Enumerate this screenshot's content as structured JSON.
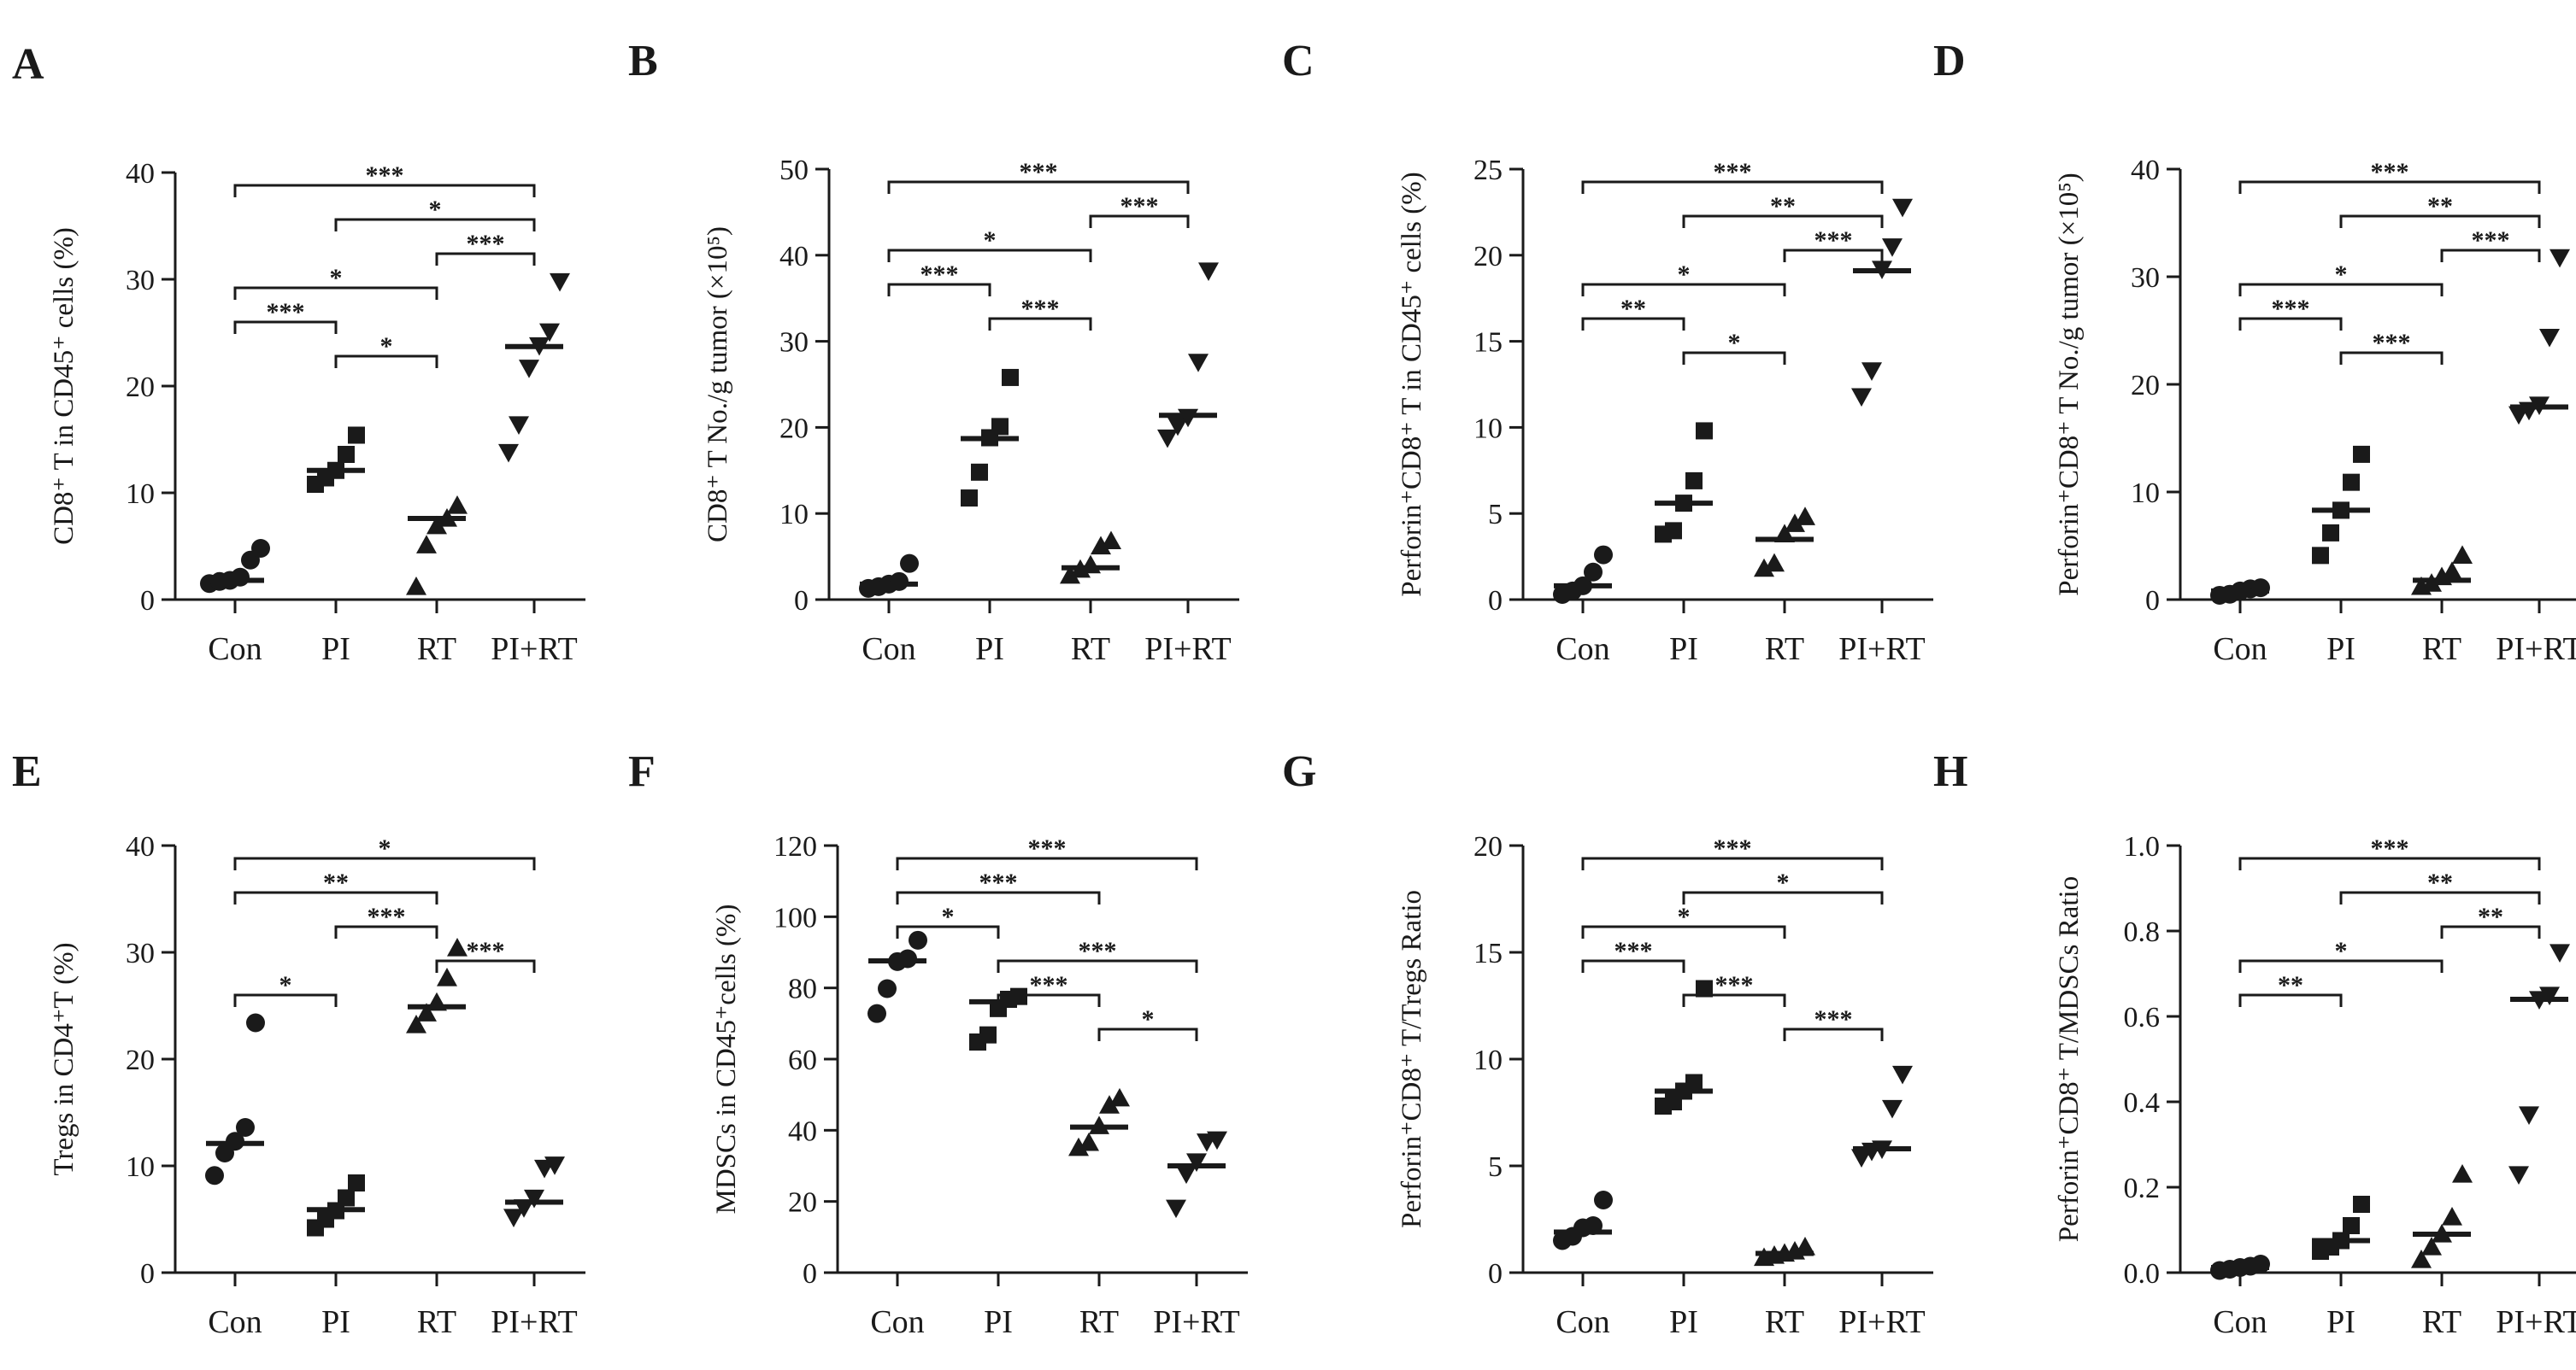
{
  "chart_data": [
    {
      "type": "scatter",
      "panel": "A",
      "ylabel": "CD8⁺ T  in CD45⁺ cells (%)",
      "ylim": [
        0,
        40
      ],
      "yticks": [
        "0",
        "10",
        "20",
        "30",
        "40"
      ],
      "categories": [
        "Con",
        "PI",
        "RT",
        "PI+RT"
      ],
      "markers": [
        "circle",
        "square",
        "triangle-up",
        "triangle-down"
      ],
      "points": [
        [
          1.5,
          1.7,
          1.8,
          2.1,
          3.7,
          4.8
        ],
        [
          10.8,
          11.4,
          12.1,
          13.6,
          15.4
        ],
        [
          1.2,
          5.1,
          6.9,
          7.6,
          8.8
        ],
        [
          13.8,
          16.4,
          21.7,
          23.8,
          25.1,
          29.8
        ]
      ],
      "medians": [
        1.8,
        12.1,
        7.6,
        23.7
      ],
      "significance": [
        {
          "from": 0,
          "to": 3,
          "stars": "***"
        },
        {
          "from": 1,
          "to": 3,
          "stars": "*"
        },
        {
          "from": 2,
          "to": 3,
          "stars": "***"
        },
        {
          "from": 0,
          "to": 2,
          "stars": "*"
        },
        {
          "from": 0,
          "to": 1,
          "stars": "***"
        },
        {
          "from": 1,
          "to": 2,
          "stars": "*"
        }
      ]
    },
    {
      "type": "scatter",
      "panel": "B",
      "ylabel": "CD8⁺ T No./g tumor (×10⁵)",
      "ylim": [
        0,
        50
      ],
      "yticks": [
        "0",
        "10",
        "20",
        "30",
        "40",
        "50"
      ],
      "categories": [
        "Con",
        "PI",
        "RT",
        "PI+RT"
      ],
      "markers": [
        "circle",
        "square",
        "triangle-up",
        "triangle-down"
      ],
      "points": [
        [
          1.3,
          1.5,
          1.8,
          2.1,
          4.2
        ],
        [
          11.8,
          14.8,
          18.8,
          20.1,
          25.8
        ],
        [
          2.8,
          3.5,
          4.0,
          6.2,
          6.8
        ],
        [
          18.8,
          20.2,
          21.2,
          27.6,
          38.2
        ]
      ],
      "medians": [
        1.8,
        18.7,
        3.7,
        21.4
      ],
      "significance": [
        {
          "from": 0,
          "to": 3,
          "stars": "***"
        },
        {
          "from": 2,
          "to": 3,
          "stars": "***"
        },
        {
          "from": 0,
          "to": 2,
          "stars": "*"
        },
        {
          "from": 0,
          "to": 1,
          "stars": "***"
        },
        {
          "from": 1,
          "to": 2,
          "stars": "***"
        }
      ]
    },
    {
      "type": "scatter",
      "panel": "C",
      "ylabel": "Perforin⁺CD8⁺ T in CD45⁺ cells (%)",
      "ylim": [
        0,
        25
      ],
      "yticks": [
        "0",
        "5",
        "10",
        "15",
        "20",
        "25"
      ],
      "categories": [
        "Con",
        "PI",
        "RT",
        "PI+RT"
      ],
      "markers": [
        "circle",
        "square",
        "triangle-up",
        "triangle-down"
      ],
      "points": [
        [
          0.3,
          0.5,
          0.8,
          1.6,
          2.6
        ],
        [
          3.8,
          4.0,
          5.6,
          6.9,
          9.8
        ],
        [
          1.8,
          2.1,
          3.8,
          4.4,
          4.8
        ],
        [
          11.8,
          13.3,
          19.2,
          20.5,
          22.8
        ]
      ],
      "medians": [
        0.8,
        5.6,
        3.5,
        19.1
      ],
      "significance": [
        {
          "from": 0,
          "to": 3,
          "stars": "***"
        },
        {
          "from": 1,
          "to": 3,
          "stars": "**"
        },
        {
          "from": 2,
          "to": 3,
          "stars": "***"
        },
        {
          "from": 0,
          "to": 2,
          "stars": "*"
        },
        {
          "from": 0,
          "to": 1,
          "stars": "**"
        },
        {
          "from": 1,
          "to": 2,
          "stars": "*"
        }
      ]
    },
    {
      "type": "scatter",
      "panel": "D",
      "ylabel": "Perforin⁺CD8⁺ T No./g tumor (×10⁵)",
      "ylim": [
        0,
        40
      ],
      "yticks": [
        "0",
        "10",
        "20",
        "30",
        "40"
      ],
      "categories": [
        "Con",
        "PI",
        "RT",
        "PI+RT"
      ],
      "markers": [
        "circle",
        "square",
        "triangle-up",
        "triangle-down"
      ],
      "points": [
        [
          0.4,
          0.5,
          0.8,
          1.0,
          1.1
        ],
        [
          4.1,
          6.2,
          8.3,
          10.9,
          13.5
        ],
        [
          1.2,
          1.5,
          2.1,
          2.6,
          4.1
        ],
        [
          17.2,
          17.6,
          18.1,
          24.4,
          31.8
        ]
      ],
      "medians": [
        0.8,
        8.3,
        1.8,
        17.9
      ],
      "significance": [
        {
          "from": 0,
          "to": 3,
          "stars": "***"
        },
        {
          "from": 1,
          "to": 3,
          "stars": "**"
        },
        {
          "from": 2,
          "to": 3,
          "stars": "***"
        },
        {
          "from": 0,
          "to": 2,
          "stars": "*"
        },
        {
          "from": 0,
          "to": 1,
          "stars": "***"
        },
        {
          "from": 1,
          "to": 2,
          "stars": "***"
        }
      ]
    },
    {
      "type": "scatter",
      "panel": "E",
      "ylabel": "Tregs in CD4⁺T (%)",
      "ylim": [
        0,
        40
      ],
      "yticks": [
        "0",
        "10",
        "20",
        "30",
        "40"
      ],
      "categories": [
        "Con",
        "PI",
        "RT",
        "PI+RT"
      ],
      "markers": [
        "circle",
        "square",
        "triangle-up",
        "triangle-down"
      ],
      "points": [
        [
          9.1,
          11.2,
          12.3,
          13.6,
          23.4
        ],
        [
          4.2,
          5.0,
          5.8,
          7.0,
          8.4
        ],
        [
          23.2,
          24.3,
          25.3,
          27.6,
          30.4
        ],
        [
          5.2,
          6.1,
          7.0,
          9.8,
          10.1
        ]
      ],
      "medians": [
        12.1,
        5.9,
        24.9,
        6.6
      ],
      "significance": [
        {
          "from": 0,
          "to": 3,
          "stars": "*"
        },
        {
          "from": 0,
          "to": 2,
          "stars": "**"
        },
        {
          "from": 1,
          "to": 2,
          "stars": "***"
        },
        {
          "from": 2,
          "to": 3,
          "stars": "***"
        },
        {
          "from": 0,
          "to": 1,
          "stars": "*"
        }
      ]
    },
    {
      "type": "scatter",
      "panel": "F",
      "ylabel": "MDSCs in CD45⁺cells (%)",
      "ylim": [
        0,
        120
      ],
      "yticks": [
        "0",
        "20",
        "40",
        "60",
        "80",
        "100",
        "120"
      ],
      "categories": [
        "Con",
        "PI",
        "RT",
        "PI+RT"
      ],
      "markers": [
        "circle",
        "square",
        "triangle-up",
        "triangle-down"
      ],
      "points": [
        [
          72.8,
          79.8,
          87.4,
          88.2,
          93.4
        ],
        [
          64.8,
          66.8,
          74.2,
          76.8,
          77.6
        ],
        [
          35.1,
          36.5,
          41.2,
          47.0,
          49.0
        ],
        [
          18.2,
          27.8,
          31.2,
          36.8,
          37.4
        ]
      ],
      "medians": [
        87.6,
        76.1,
        40.9,
        30.0
      ],
      "significance": [
        {
          "from": 0,
          "to": 3,
          "stars": "***"
        },
        {
          "from": 0,
          "to": 2,
          "stars": "***"
        },
        {
          "from": 0,
          "to": 1,
          "stars": "*"
        },
        {
          "from": 1,
          "to": 3,
          "stars": "***"
        },
        {
          "from": 1,
          "to": 2,
          "stars": "***"
        },
        {
          "from": 2,
          "to": 3,
          "stars": "*"
        }
      ]
    },
    {
      "type": "scatter",
      "panel": "G",
      "ylabel": "Perforin⁺CD8⁺ T/Tregs Ratio",
      "ylim": [
        0,
        20
      ],
      "yticks": [
        "0",
        "5",
        "10",
        "15",
        "20"
      ],
      "categories": [
        "Con",
        "PI",
        "RT",
        "PI+RT"
      ],
      "markers": [
        "circle",
        "square",
        "triangle-up",
        "triangle-down"
      ],
      "points": [
        [
          1.5,
          1.7,
          2.1,
          2.2,
          3.4
        ],
        [
          7.8,
          8.0,
          8.5,
          8.9,
          13.3
        ],
        [
          0.7,
          0.8,
          0.9,
          1.0,
          1.2
        ],
        [
          5.4,
          5.7,
          5.8,
          7.7,
          9.3
        ]
      ],
      "medians": [
        1.9,
        8.5,
        0.9,
        5.8
      ],
      "significance": [
        {
          "from": 0,
          "to": 3,
          "stars": "***"
        },
        {
          "from": 1,
          "to": 3,
          "stars": "*"
        },
        {
          "from": 0,
          "to": 2,
          "stars": "*"
        },
        {
          "from": 0,
          "to": 1,
          "stars": "***"
        },
        {
          "from": 1,
          "to": 2,
          "stars": "***"
        },
        {
          "from": 2,
          "to": 3,
          "stars": "***"
        }
      ]
    },
    {
      "type": "scatter",
      "panel": "H",
      "ylabel": "Perforin⁺CD8⁺ T/MDSCs Ratio",
      "ylim": [
        0,
        1.0
      ],
      "yticks": [
        "0.0",
        "0.2",
        "0.4",
        "0.6",
        "0.8",
        "1.0"
      ],
      "categories": [
        "Con",
        "PI",
        "RT",
        "PI+RT"
      ],
      "markers": [
        "circle",
        "square",
        "triangle-up",
        "triangle-down"
      ],
      "points": [
        [
          0.005,
          0.008,
          0.012,
          0.015,
          0.02
        ],
        [
          0.05,
          0.06,
          0.075,
          0.11,
          0.16
        ],
        [
          0.03,
          0.06,
          0.09,
          0.13,
          0.23
        ],
        [
          0.23,
          0.37,
          0.64,
          0.65,
          0.75
        ]
      ],
      "medians": [
        0.012,
        0.075,
        0.09,
        0.64
      ],
      "significance": [
        {
          "from": 0,
          "to": 3,
          "stars": "***"
        },
        {
          "from": 1,
          "to": 3,
          "stars": "**"
        },
        {
          "from": 2,
          "to": 3,
          "stars": "**"
        },
        {
          "from": 0,
          "to": 2,
          "stars": "*"
        },
        {
          "from": 0,
          "to": 1,
          "stars": "**"
        }
      ]
    }
  ]
}
